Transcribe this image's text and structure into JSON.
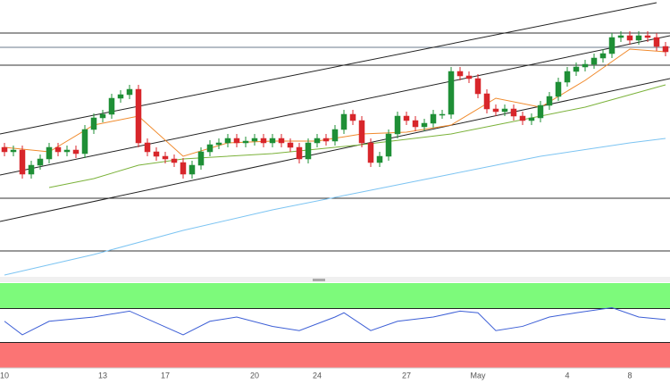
{
  "chart_data": {
    "type": "candlestick",
    "categories": [
      "10",
      null,
      null,
      null,
      null,
      null,
      null,
      null,
      null,
      null,
      null,
      "13",
      null,
      null,
      null,
      null,
      null,
      null,
      "17",
      null,
      null,
      null,
      null,
      null,
      null,
      null,
      null,
      null,
      "20",
      null,
      null,
      null,
      null,
      null,
      null,
      "24",
      null,
      null,
      null,
      null,
      null,
      null,
      null,
      null,
      null,
      "27",
      null,
      null,
      null,
      null,
      null,
      null,
      null,
      "May",
      null,
      null,
      null,
      null,
      null,
      null,
      null,
      null,
      null,
      "4",
      null,
      null,
      null,
      null,
      null,
      null,
      "8",
      null,
      null,
      null,
      null
    ],
    "open": [
      145,
      140,
      142,
      115,
      125,
      132,
      145,
      140,
      142,
      138,
      165,
      178,
      182,
      200,
      204,
      210,
      150,
      140,
      135,
      132,
      128,
      115,
      125,
      140,
      148,
      150,
      155,
      150,
      152,
      155,
      150,
      155,
      150,
      145,
      132,
      150,
      155,
      152,
      165,
      182,
      175,
      150,
      128,
      135,
      160,
      180,
      175,
      168,
      172,
      182,
      182,
      230,
      225,
      222,
      205,
      188,
      185,
      188,
      180,
      175,
      178,
      192,
      202,
      218,
      230,
      235,
      238,
      245,
      250,
      268,
      270,
      265,
      270,
      268,
      258
    ],
    "high": [
      150,
      147,
      147,
      130,
      137,
      150,
      150,
      147,
      147,
      170,
      183,
      187,
      205,
      209,
      215,
      215,
      155,
      145,
      140,
      137,
      133,
      130,
      145,
      153,
      155,
      160,
      160,
      157,
      160,
      160,
      160,
      160,
      155,
      150,
      155,
      160,
      160,
      170,
      187,
      187,
      180,
      155,
      140,
      165,
      185,
      185,
      180,
      177,
      187,
      187,
      235,
      235,
      230,
      227,
      210,
      193,
      193,
      193,
      185,
      183,
      197,
      207,
      223,
      235,
      240,
      243,
      250,
      255,
      273,
      275,
      275,
      275,
      275,
      273,
      263
    ],
    "low": [
      135,
      135,
      110,
      110,
      120,
      127,
      135,
      135,
      133,
      133,
      160,
      173,
      177,
      195,
      199,
      145,
      135,
      130,
      127,
      123,
      110,
      110,
      120,
      135,
      143,
      145,
      145,
      145,
      147,
      145,
      145,
      145,
      140,
      127,
      127,
      145,
      147,
      147,
      160,
      170,
      145,
      123,
      123,
      130,
      155,
      170,
      163,
      163,
      167,
      177,
      177,
      220,
      217,
      200,
      183,
      180,
      180,
      175,
      170,
      170,
      173,
      187,
      197,
      213,
      225,
      230,
      233,
      240,
      245,
      263,
      260,
      260,
      263,
      253,
      247
    ],
    "close": [
      140,
      142,
      115,
      125,
      132,
      145,
      140,
      142,
      138,
      165,
      178,
      182,
      200,
      204,
      210,
      150,
      140,
      135,
      132,
      128,
      115,
      125,
      140,
      148,
      150,
      155,
      150,
      152,
      155,
      150,
      155,
      150,
      145,
      132,
      150,
      155,
      152,
      165,
      182,
      175,
      150,
      128,
      135,
      160,
      180,
      175,
      168,
      172,
      182,
      182,
      230,
      225,
      222,
      205,
      188,
      185,
      188,
      180,
      175,
      178,
      192,
      202,
      218,
      230,
      235,
      238,
      245,
      250,
      268,
      270,
      265,
      270,
      268,
      258,
      252
    ],
    "up_color": "#1f8f36",
    "down_color": "#d8262b",
    "ylim": [
      0,
      310
    ],
    "lines": [
      {
        "color": "#f08a2c",
        "x": [
          0,
          5,
          10,
          15,
          20,
          25,
          30,
          35,
          40,
          45,
          50,
          55,
          60,
          65,
          70,
          74
        ],
        "values": [
          145,
          140,
          170,
          180,
          135,
          150,
          152,
          152,
          160,
          162,
          170,
          200,
          190,
          220,
          255,
          252
        ]
      },
      {
        "color": "#7bb23a",
        "x": [
          5,
          10,
          15,
          20,
          30,
          40,
          50,
          55,
          65,
          74
        ],
        "values": [
          100,
          110,
          125,
          132,
          138,
          148,
          160,
          170,
          190,
          215
        ]
      },
      {
        "color": "#7cc4f2",
        "x": [
          0,
          10,
          20,
          30,
          40,
          50,
          60,
          70,
          74
        ],
        "values": [
          2,
          25,
          52,
          75,
          95,
          115,
          135,
          150,
          155
        ]
      }
    ],
    "rsi": {
      "color": "#3d5fd6",
      "x": [
        0,
        2,
        5,
        10,
        14,
        20,
        23,
        26,
        30,
        33,
        37,
        38,
        41,
        44,
        48,
        51,
        53,
        55,
        58,
        61,
        64,
        68,
        71,
        74
      ],
      "values": [
        55,
        39,
        55,
        60,
        67,
        39,
        55,
        60,
        49,
        44,
        60,
        65,
        44,
        55,
        60,
        67,
        65,
        44,
        49,
        60,
        65,
        71,
        60,
        57
      ],
      "ylim": [
        0,
        100
      ],
      "bands": [
        30,
        70
      ],
      "upper_color": "#7dfa7b",
      "lower_color": "#fb7474"
    }
  }
}
